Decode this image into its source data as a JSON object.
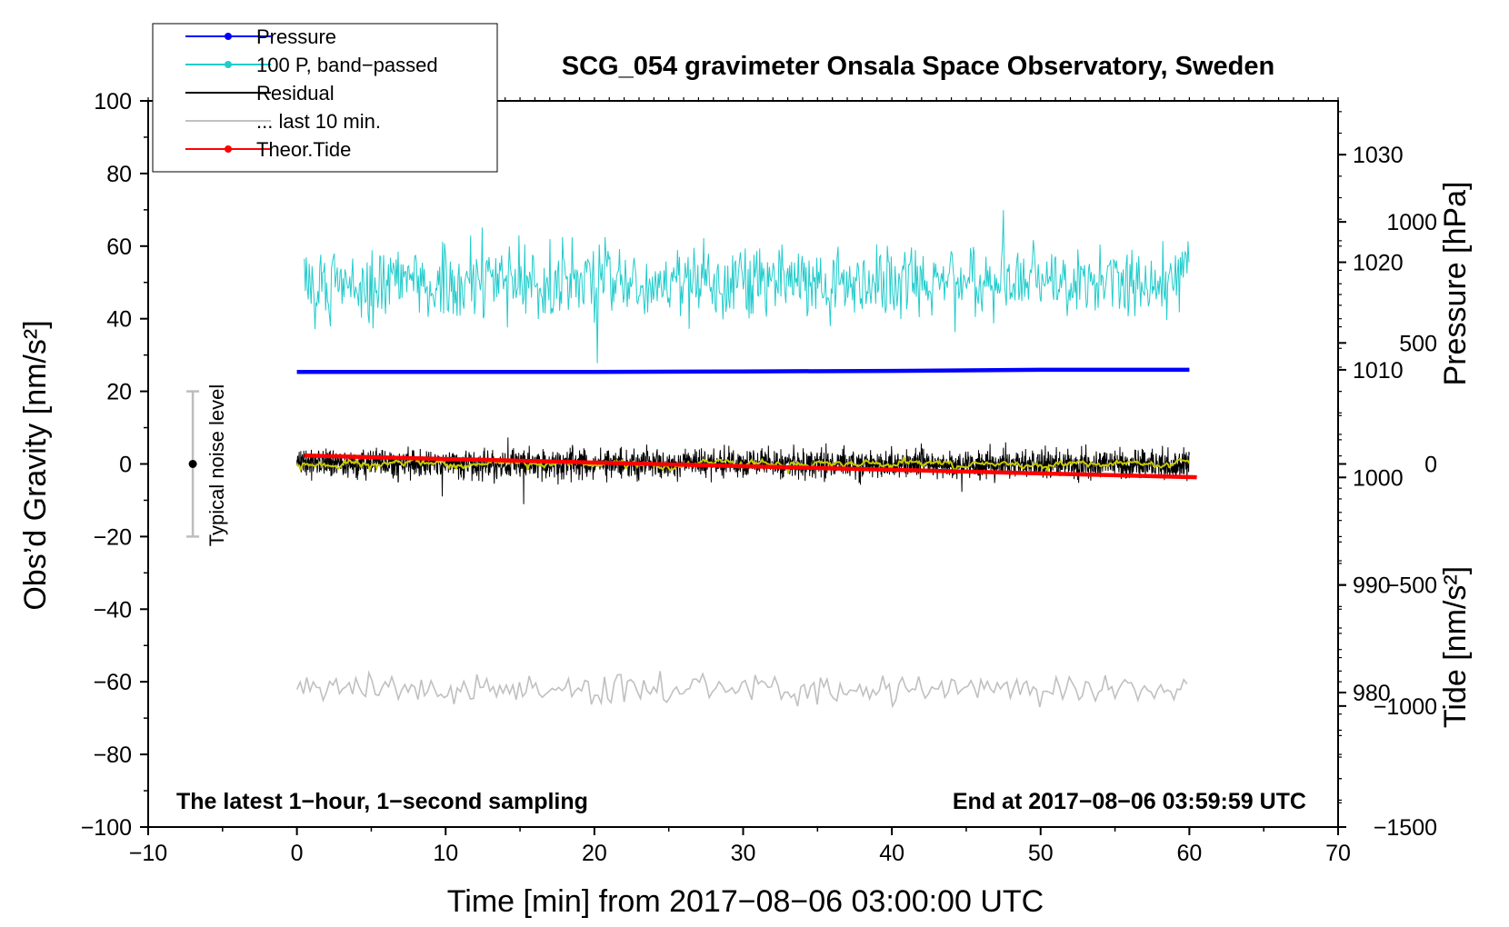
{
  "chart_data": {
    "type": "line",
    "title": "SCG_054 gravimeter Onsala Space Observatory, Sweden",
    "xlabel": "Time [min] from 2017−08−06 03:00:00 UTC",
    "ylabel_left": "Obs’d Gravity [nm/s²]",
    "ylabel_right_top": "Pressure [hPa]",
    "ylabel_right_bottom": "Tide [nm/s²]",
    "xlim": [
      -10,
      70
    ],
    "ylim_left": [
      -100,
      100
    ],
    "ylim_pressure": [
      967.5,
      1035
    ],
    "ylim_tide": [
      -1500,
      1500
    ],
    "x_ticks": [
      "−10",
      "0",
      "10",
      "20",
      "30",
      "40",
      "50",
      "60",
      "70"
    ],
    "y_left_ticks": [
      "100",
      "80",
      "60",
      "40",
      "20",
      "0",
      "−20",
      "−40",
      "−60",
      "−80",
      "−100"
    ],
    "pressure_ticks": [
      "1030",
      "1020",
      "1010",
      "1000",
      "990",
      "980"
    ],
    "tide_ticks": [
      "1000",
      "500",
      "0",
      "−500",
      "−1000",
      "−1500"
    ],
    "note_left": "The latest 1−hour, 1−second sampling",
    "note_right": "End at 2017−08−06 03:59:59 UTC",
    "noise_label": "Typical noise level",
    "noise_bar": {
      "x": -7,
      "center": 0,
      "half_range": 20
    },
    "legend_position": "top-left",
    "legend": [
      {
        "label": "Pressure",
        "color": "#0000ff",
        "marker": true
      },
      {
        "label": "100 P, band−passed",
        "color": "#22cccc",
        "marker": true
      },
      {
        "label": "Residual",
        "color": "#000000",
        "marker": false
      },
      {
        "label": "... last 10 min.",
        "color": "#c0c0c0",
        "marker": false
      },
      {
        "label": "Theor.Tide",
        "color": "#ff0000",
        "marker": true
      }
    ],
    "series": [
      {
        "name": "Pressure",
        "color": "#0000ff",
        "axis": "pressure",
        "x": [
          0,
          10,
          20,
          30,
          40,
          50,
          60
        ],
        "values": [
          1009.8,
          1009.8,
          1009.8,
          1009.85,
          1009.9,
          1010.0,
          1010.0
        ]
      },
      {
        "name": "100 P, band−passed",
        "color": "#22cccc",
        "axis": "left",
        "x_range": [
          0.5,
          60
        ],
        "mean": 50,
        "amplitude": 5
      },
      {
        "name": "Residual",
        "color": "#000000",
        "axis": "left",
        "x_range": [
          0,
          60
        ],
        "mean": 0,
        "amplitude": 2
      },
      {
        "name": "... last 10 min.",
        "color": "#c0c0c0",
        "axis": "left",
        "x_range": [
          0,
          60
        ],
        "mean": -62,
        "amplitude": 2
      },
      {
        "name": "Theor.Tide",
        "color": "#ff0000",
        "axis": "tide",
        "x": [
          0.5,
          60.5
        ],
        "values": [
          35,
          -55
        ]
      },
      {
        "name": "smoothed residual",
        "color": "#c8c800",
        "axis": "left",
        "x_range": [
          0,
          60
        ],
        "mean": 0,
        "amplitude": 0.9
      }
    ]
  }
}
